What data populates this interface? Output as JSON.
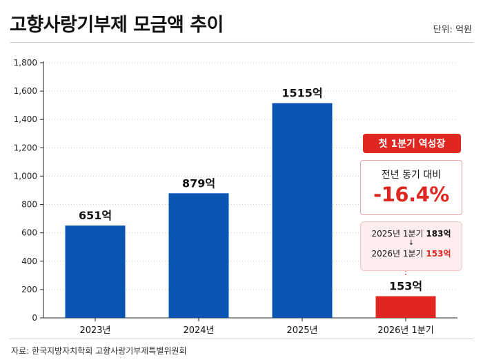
{
  "header": {
    "title": "고향사랑기부제 모금액 추이",
    "unit": "단위: 억원"
  },
  "source": "자료: 한국지방자치학회 고향사랑기부제특별위원회",
  "chart_data": {
    "type": "bar",
    "categories": [
      "2023년",
      "2024년",
      "2025년",
      "2026년 1분기"
    ],
    "values": [
      651,
      879,
      1515,
      153
    ],
    "value_labels": [
      "651억",
      "879억",
      "1515억",
      "153억"
    ],
    "bar_colors": [
      "#0a55b4",
      "#0a55b4",
      "#0a55b4",
      "#e02620"
    ],
    "ylim": [
      0,
      1800
    ],
    "yticks": [
      0,
      200,
      400,
      600,
      800,
      1000,
      1200,
      1400,
      1600,
      1800
    ],
    "ytick_labels": [
      "0",
      "200",
      "400",
      "600",
      "800",
      "1,000",
      "1,200",
      "1,400",
      "1,600",
      "1,800"
    ],
    "grid": true,
    "title": "고향사랑기부제 모금액 추이",
    "xlabel": "",
    "ylabel": ""
  },
  "annotation": {
    "badge": "첫 1분기 역성장",
    "yoy_label": "전년 동기 대비",
    "yoy_value": "-16.4%",
    "cmp_prefix_1": "2025년 1분기 ",
    "cmp_value_1": "183억",
    "cmp_arrow": "↓",
    "cmp_prefix_2": "2026년 1분기 ",
    "cmp_value_2": "153억"
  }
}
